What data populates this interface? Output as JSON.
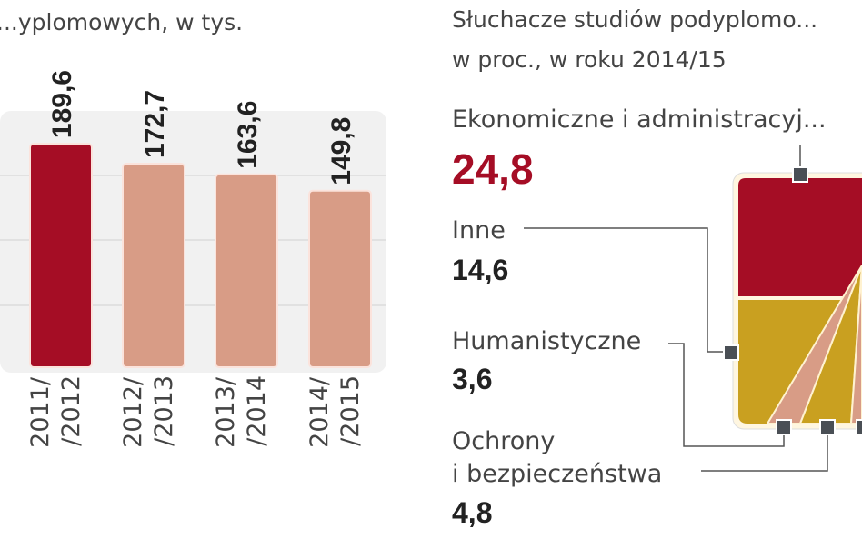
{
  "chart_data": [
    {
      "type": "bar",
      "title": "...yplomowych, w tys.",
      "categories": [
        "2011/\n/2012",
        "2012/\n/2013",
        "2013/\n/2014",
        "2014/\n/2015"
      ],
      "category_lines": [
        [
          "2011/",
          "/2012"
        ],
        [
          "2012/",
          "/2013"
        ],
        [
          "2013/",
          "/2014"
        ],
        [
          "2014/",
          "/2015"
        ]
      ],
      "values": [
        189.6,
        172.7,
        163.6,
        149.8
      ],
      "value_labels": [
        "189,6",
        "172,7",
        "163,6",
        "149,8"
      ],
      "highlight_color": "#a50d25",
      "bar_color": "#d89c86",
      "grid": true
    },
    {
      "type": "treemap",
      "title_lines": [
        "Słuchacze studiów podyplomo...",
        "w proc., w roku 2014/15"
      ],
      "segments": [
        {
          "label": "Ekonomiczne i administracyj...",
          "value": "24,8",
          "color": "#a50d25"
        },
        {
          "label": "Inne",
          "value": "14,6",
          "color": "#c9a020"
        },
        {
          "label": "Humanistyczne",
          "value": "3,6",
          "color": "#d89c86"
        },
        {
          "label_lines": [
            "Ochrony",
            "i bezpieczeństwa"
          ],
          "value": "4,8",
          "color": "#c9a020"
        }
      ]
    }
  ]
}
